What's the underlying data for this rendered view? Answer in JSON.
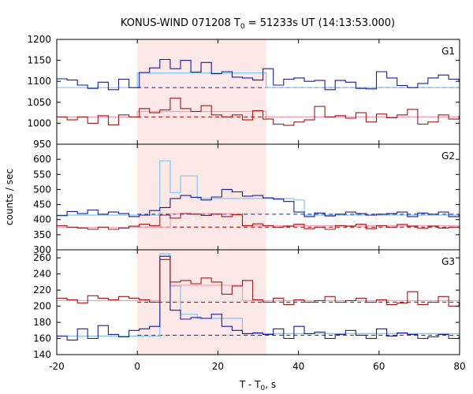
{
  "chart_data": {
    "type": "line",
    "title": "KONUS-WIND 071208 T",
    "title_sub": "0",
    "title_rest": " = 51233s UT (14:13:53.000)",
    "xlabel": "T - T",
    "xlabel_sub": "0",
    "xlabel_rest": ", s",
    "ylabel": "counts / sec",
    "xlim": [
      -20,
      80
    ],
    "xticks": [
      -20,
      0,
      20,
      40,
      60,
      80
    ],
    "highlight_interval": [
      0,
      32
    ],
    "colors": {
      "highlight": "#fde8e8",
      "hard_series": "#1a1aa0",
      "soft_series": "#a01818",
      "hard_fit": "#7ec8ee",
      "soft_fit": "#f4a0b8",
      "hard_background": "#2838c8",
      "soft_background": "#b02020"
    },
    "panels": [
      {
        "label": "G1",
        "ylim": [
          950,
          1200
        ],
        "yticks": [
          950,
          1000,
          1050,
          1100,
          1150,
          1200
        ],
        "series": [
          {
            "role": "hard",
            "x": [
              -20,
              -17.44,
              -14.88,
              -12.32,
              -9.76,
              -7.2,
              -4.64,
              -2.08,
              0.48,
              3.04,
              5.6,
              8.16,
              10.72,
              13.28,
              15.84,
              18.4,
              20.96,
              23.52,
              26.08,
              28.64,
              31.2,
              33.76,
              36.32,
              38.88,
              41.44,
              44,
              46.56,
              49.12,
              51.68,
              54.24,
              56.8,
              59.36,
              61.92,
              64.48,
              67.04,
              69.6,
              72.16,
              74.72,
              77.28,
              79.84
            ],
            "values": [
              1106,
              1103,
              1091,
              1083,
              1098,
              1080,
              1105,
              1085,
              1121,
              1132,
              1152,
              1130,
              1150,
              1122,
              1145,
              1118,
              1123,
              1110,
              1108,
              1103,
              1130,
              1091,
              1105,
              1108,
              1100,
              1102,
              1080,
              1102,
              1098,
              1083,
              1082,
              1123,
              1108,
              1090,
              1085,
              1095,
              1108,
              1115,
              1105,
              1102
            ]
          },
          {
            "role": "soft",
            "x": [
              -20,
              -17.44,
              -14.88,
              -12.32,
              -9.76,
              -7.2,
              -4.64,
              -2.08,
              0.48,
              3.04,
              5.6,
              8.16,
              10.72,
              13.28,
              15.84,
              18.4,
              20.96,
              23.52,
              26.08,
              28.64,
              31.2,
              33.76,
              36.32,
              38.88,
              41.44,
              44,
              46.56,
              49.12,
              51.68,
              54.24,
              56.8,
              59.36,
              61.92,
              64.48,
              67.04,
              69.6,
              72.16,
              74.72,
              77.28,
              79.84
            ],
            "values": [
              1015,
              1008,
              1015,
              1000,
              1018,
              996,
              1020,
              1015,
              1035,
              1025,
              1032,
              1060,
              1035,
              1028,
              1042,
              1020,
              1015,
              1020,
              1008,
              1030,
              1010,
              998,
              995,
              1003,
              1008,
              1040,
              1015,
              1018,
              1012,
              1025,
              1003,
              1022,
              1013,
              1020,
              1033,
              998,
              1003,
              1020,
              1010,
              1017
            ]
          },
          {
            "role": "hard_fit",
            "x": [
              -20,
              0,
              32,
              80
            ],
            "values": [
              1085,
              1120,
              1085,
              1085
            ]
          },
          {
            "role": "soft_fit",
            "x": [
              -20,
              0,
              32,
              80
            ],
            "values": [
              1015,
              1028,
              1015,
              1015
            ]
          }
        ],
        "background_levels": {
          "hard": 1085,
          "soft": 1015
        },
        "background_interval": [
          0,
          80
        ]
      },
      {
        "label": "G2",
        "ylim": [
          300,
          650
        ],
        "yticks": [
          300,
          350,
          400,
          450,
          500,
          550,
          600
        ],
        "series": [
          {
            "role": "hard",
            "x": [
              -20,
              -17.44,
              -14.88,
              -12.32,
              -9.76,
              -7.2,
              -4.64,
              -2.08,
              0.48,
              3.04,
              5.6,
              8.16,
              10.72,
              13.28,
              15.84,
              18.4,
              20.96,
              23.52,
              26.08,
              28.64,
              31.2,
              33.76,
              36.32,
              38.88,
              41.44,
              44,
              46.56,
              49.12,
              51.68,
              54.24,
              56.8,
              59.36,
              61.92,
              64.48,
              67.04,
              69.6,
              72.16,
              74.72,
              77.28,
              79.84
            ],
            "values": [
              413,
              427,
              420,
              432,
              418,
              425,
              420,
              410,
              415,
              430,
              440,
              470,
              480,
              474,
              465,
              475,
              500,
              492,
              478,
              480,
              472,
              468,
              460,
              425,
              410,
              422,
              412,
              418,
              425,
              420,
              415,
              418,
              420,
              425,
              410,
              422,
              418,
              425,
              410,
              415
            ]
          },
          {
            "role": "soft",
            "x": [
              -20,
              -17.44,
              -14.88,
              -12.32,
              -9.76,
              -7.2,
              -4.64,
              -2.08,
              0.48,
              3.04,
              5.6,
              8.16,
              10.72,
              13.28,
              15.84,
              18.4,
              20.96,
              23.52,
              26.08,
              28.64,
              31.2,
              33.76,
              36.32,
              38.88,
              41.44,
              44,
              46.56,
              49.12,
              51.68,
              54.24,
              56.8,
              59.36,
              61.92,
              64.48,
              67.04,
              69.6,
              72.16,
              74.72,
              77.28,
              79.84
            ],
            "values": [
              380,
              375,
              372,
              368,
              375,
              368,
              372,
              378,
              385,
              380,
              415,
              405,
              420,
              418,
              414,
              418,
              410,
              416,
              380,
              386,
              380,
              375,
              378,
              385,
              370,
              375,
              368,
              380,
              378,
              385,
              370,
              380,
              375,
              384,
              378,
              371,
              378,
              372,
              375,
              373
            ]
          },
          {
            "role": "hard_fit",
            "x": [
              -20,
              0,
              5.6,
              8.16,
              10.72,
              14.88,
              38.88,
              41.44,
              80
            ],
            "values": [
              415,
              415,
              595,
              490,
              545,
              470,
              465,
              415,
              415
            ]
          },
          {
            "role": "soft_fit",
            "x": [
              -20,
              0,
              8.16,
              26.08,
              80
            ],
            "values": [
              375,
              375,
              420,
              380,
              375
            ]
          }
        ],
        "background_levels": {
          "hard": 418,
          "soft": 375
        },
        "background_interval": [
          0,
          80
        ]
      },
      {
        "label": "G3",
        "ylim": [
          140,
          270
        ],
        "yticks": [
          140,
          160,
          180,
          200,
          220,
          240,
          260
        ],
        "series": [
          {
            "role": "hard",
            "x": [
              -20,
              -17.44,
              -14.88,
              -12.32,
              -9.76,
              -7.2,
              -4.64,
              -2.08,
              0.48,
              3.04,
              5.6,
              8.16,
              10.72,
              13.28,
              15.84,
              18.4,
              20.96,
              23.52,
              26.08,
              28.64,
              31.2,
              33.76,
              36.32,
              38.88,
              41.44,
              44,
              46.56,
              49.12,
              51.68,
              54.24,
              56.8,
              59.36,
              61.92,
              64.48,
              67.04,
              69.6,
              72.16,
              74.72,
              77.28,
              79.84
            ],
            "values": [
              163,
              158,
              172,
              160,
              176,
              165,
              162,
              170,
              172,
              175,
              262,
              195,
              184,
              186,
              185,
              190,
              175,
              170,
              166,
              167,
              165,
              172,
              160,
              175,
              166,
              168,
              160,
              165,
              170,
              164,
              160,
              172,
              163,
              167,
              165,
              160,
              162,
              165,
              160,
              162
            ]
          },
          {
            "role": "soft",
            "x": [
              -20,
              -17.44,
              -14.88,
              -12.32,
              -9.76,
              -7.2,
              -4.64,
              -2.08,
              0.48,
              3.04,
              5.6,
              8.16,
              10.72,
              13.28,
              15.84,
              18.4,
              20.96,
              23.52,
              26.08,
              28.64,
              31.2,
              33.76,
              36.32,
              38.88,
              41.44,
              44,
              46.56,
              49.12,
              51.68,
              54.24,
              56.8,
              59.36,
              61.92,
              64.48,
              67.04,
              69.6,
              72.16,
              74.72,
              77.28,
              79.84
            ],
            "values": [
              210,
              208,
              204,
              213,
              210,
              208,
              212,
              210,
              208,
              205,
              258,
              230,
              232,
              228,
              235,
              230,
              215,
              225,
              232,
              208,
              205,
              210,
              202,
              208,
              205,
              207,
              212,
              205,
              207,
              210,
              205,
              208,
              202,
              204,
              218,
              202,
              205,
              212,
              200,
              205
            ]
          },
          {
            "role": "hard_fit",
            "x": [
              -20,
              0,
              5.6,
              8.16,
              10.72,
              14.88,
              20.96,
              26.08,
              80
            ],
            "values": [
              163,
              163,
              265,
              225,
              190,
              185,
              185,
              166,
              166
            ]
          },
          {
            "role": "soft_fit",
            "x": [
              -20,
              0,
              5.6,
              8.16,
              10.72,
              20.96,
              26.08,
              80
            ],
            "values": [
              207,
              207,
              262,
              226,
              226,
              226,
              207,
              207
            ]
          }
        ],
        "background_levels": {
          "hard": 164,
          "soft": 205
        },
        "background_interval": [
          0,
          80
        ]
      }
    ]
  }
}
